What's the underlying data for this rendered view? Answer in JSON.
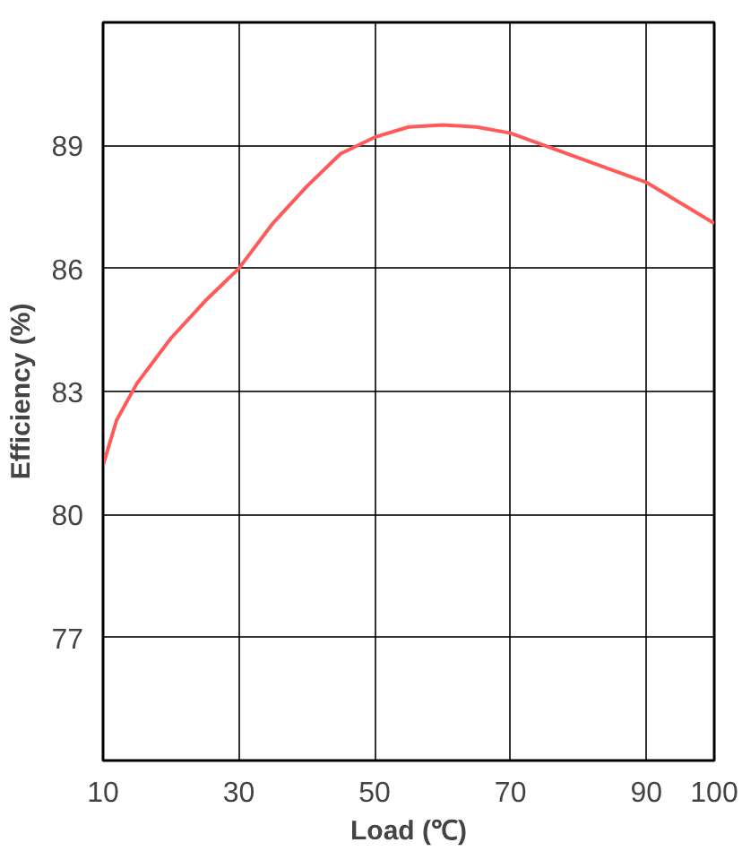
{
  "chart_data": {
    "type": "line",
    "xlabel": "Load (℃)",
    "ylabel": "Efficiency (%)",
    "x": [
      10,
      12,
      15,
      20,
      25,
      30,
      35,
      40,
      45,
      50,
      55,
      60,
      65,
      70,
      75,
      80,
      85,
      90,
      95,
      100
    ],
    "series": [
      {
        "color": "#ff5a5a",
        "values": [
          81.2,
          82.3,
          83.2,
          84.3,
          85.2,
          86.0,
          87.1,
          88.0,
          88.8,
          89.2,
          89.45,
          89.5,
          89.45,
          89.3,
          89.0,
          88.7,
          88.4,
          88.1,
          87.6,
          87.1
        ]
      }
    ],
    "xlim": [
      10,
      100
    ],
    "ylim": [
      74,
      92
    ],
    "xticks": [
      10,
      30,
      50,
      70,
      90,
      100
    ],
    "yticks": [
      77,
      80,
      83,
      86,
      89
    ],
    "grid": true,
    "marker": "none",
    "line_style": "solid"
  }
}
